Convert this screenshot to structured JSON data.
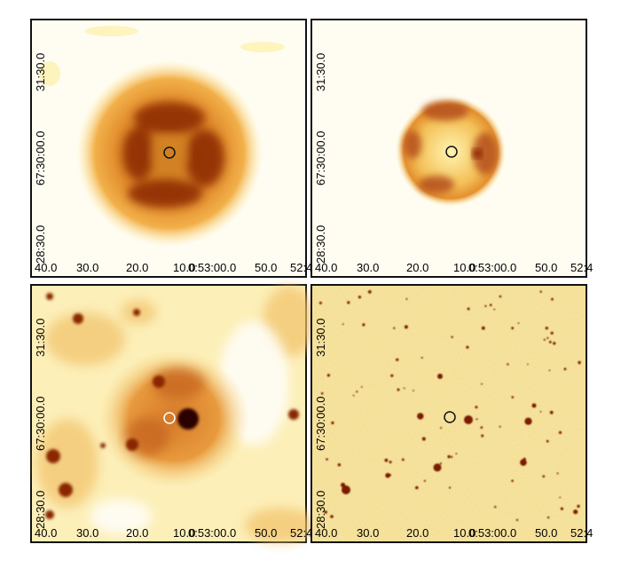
{
  "panels": [
    {
      "id": "top-left",
      "ra_labels": [
        "40.0",
        "30.0",
        "20.0",
        "10.0",
        "0:53:00.0",
        "50.0",
        "52:4"
      ],
      "dec_labels": [
        "31:30.0",
        "67:30:00.0",
        "28:30.0"
      ],
      "marker_color": "#111111"
    },
    {
      "id": "top-right",
      "ra_labels": [
        "40.0",
        "30.0",
        "20.0",
        "10.0",
        "0:53:00.0",
        "50.0",
        "52:4"
      ],
      "dec_labels": [
        "31:30.0",
        "67:30:00.0",
        "28:30.0"
      ],
      "marker_color": "#111111"
    },
    {
      "id": "bottom-left",
      "ra_labels": [
        "40.0",
        "30.0",
        "20.0",
        "10.0",
        "0:53:00.0",
        "50.0",
        "52:4"
      ],
      "dec_labels": [
        "31:30.0",
        "67:30:00.0",
        "28:30.0"
      ],
      "marker_color": "#ffffff"
    },
    {
      "id": "bottom-right",
      "ra_labels": [
        "40.0",
        "30.0",
        "20.0",
        "10.0",
        "0:53:00.0",
        "50.0",
        "52:4"
      ],
      "dec_labels": [
        "31:30.0",
        "67:30:00.0",
        "28:30.0"
      ],
      "marker_color": "#111111"
    }
  ],
  "colormap": {
    "background_light": "#fffdf2",
    "pale_yellow": "#fdf0a8",
    "orange": "#e7962f",
    "dark_brown": "#8a2605"
  }
}
